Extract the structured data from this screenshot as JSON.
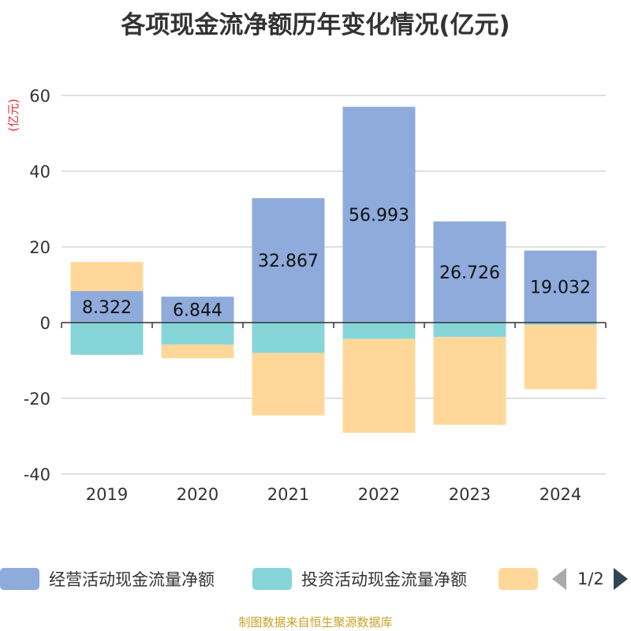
{
  "chart_data": {
    "type": "bar",
    "stacked": true,
    "title": "各项现金流净额历年变化情况(亿元)",
    "ylabel": "(亿元)",
    "xlabel": "",
    "ylim": [
      -40,
      60
    ],
    "yticks": [
      60,
      40,
      20,
      0,
      -20,
      -40
    ],
    "categories": [
      "2019",
      "2020",
      "2021",
      "2022",
      "2023",
      "2024"
    ],
    "series": [
      {
        "name": "经营活动现金流量净额",
        "color": "#8eabdb",
        "values": [
          8.322,
          6.844,
          32.867,
          56.993,
          26.726,
          19.032
        ],
        "show_labels": true
      },
      {
        "name": "投资活动现金流量净额",
        "color": "#86d5d8",
        "values": [
          -8.5,
          -5.8,
          -8.0,
          -4.3,
          -3.8,
          -0.6
        ],
        "show_labels": false
      },
      {
        "name": "",
        "color": "#ffd899",
        "values": [
          7.7,
          -3.6,
          -16.5,
          -24.8,
          -23.2,
          -17.0
        ],
        "show_labels": false
      }
    ],
    "legend_position": "bottom",
    "grid": true
  },
  "legend": {
    "items": [
      {
        "label": "经营活动现金流量净额",
        "color": "#8eabdb"
      },
      {
        "label": "投资活动现金流量净额",
        "color": "#86d5d8"
      },
      {
        "label": "",
        "color": "#ffd899"
      }
    ],
    "page_text": "1/2"
  },
  "source": "制图数据来自恒生聚源数据库"
}
